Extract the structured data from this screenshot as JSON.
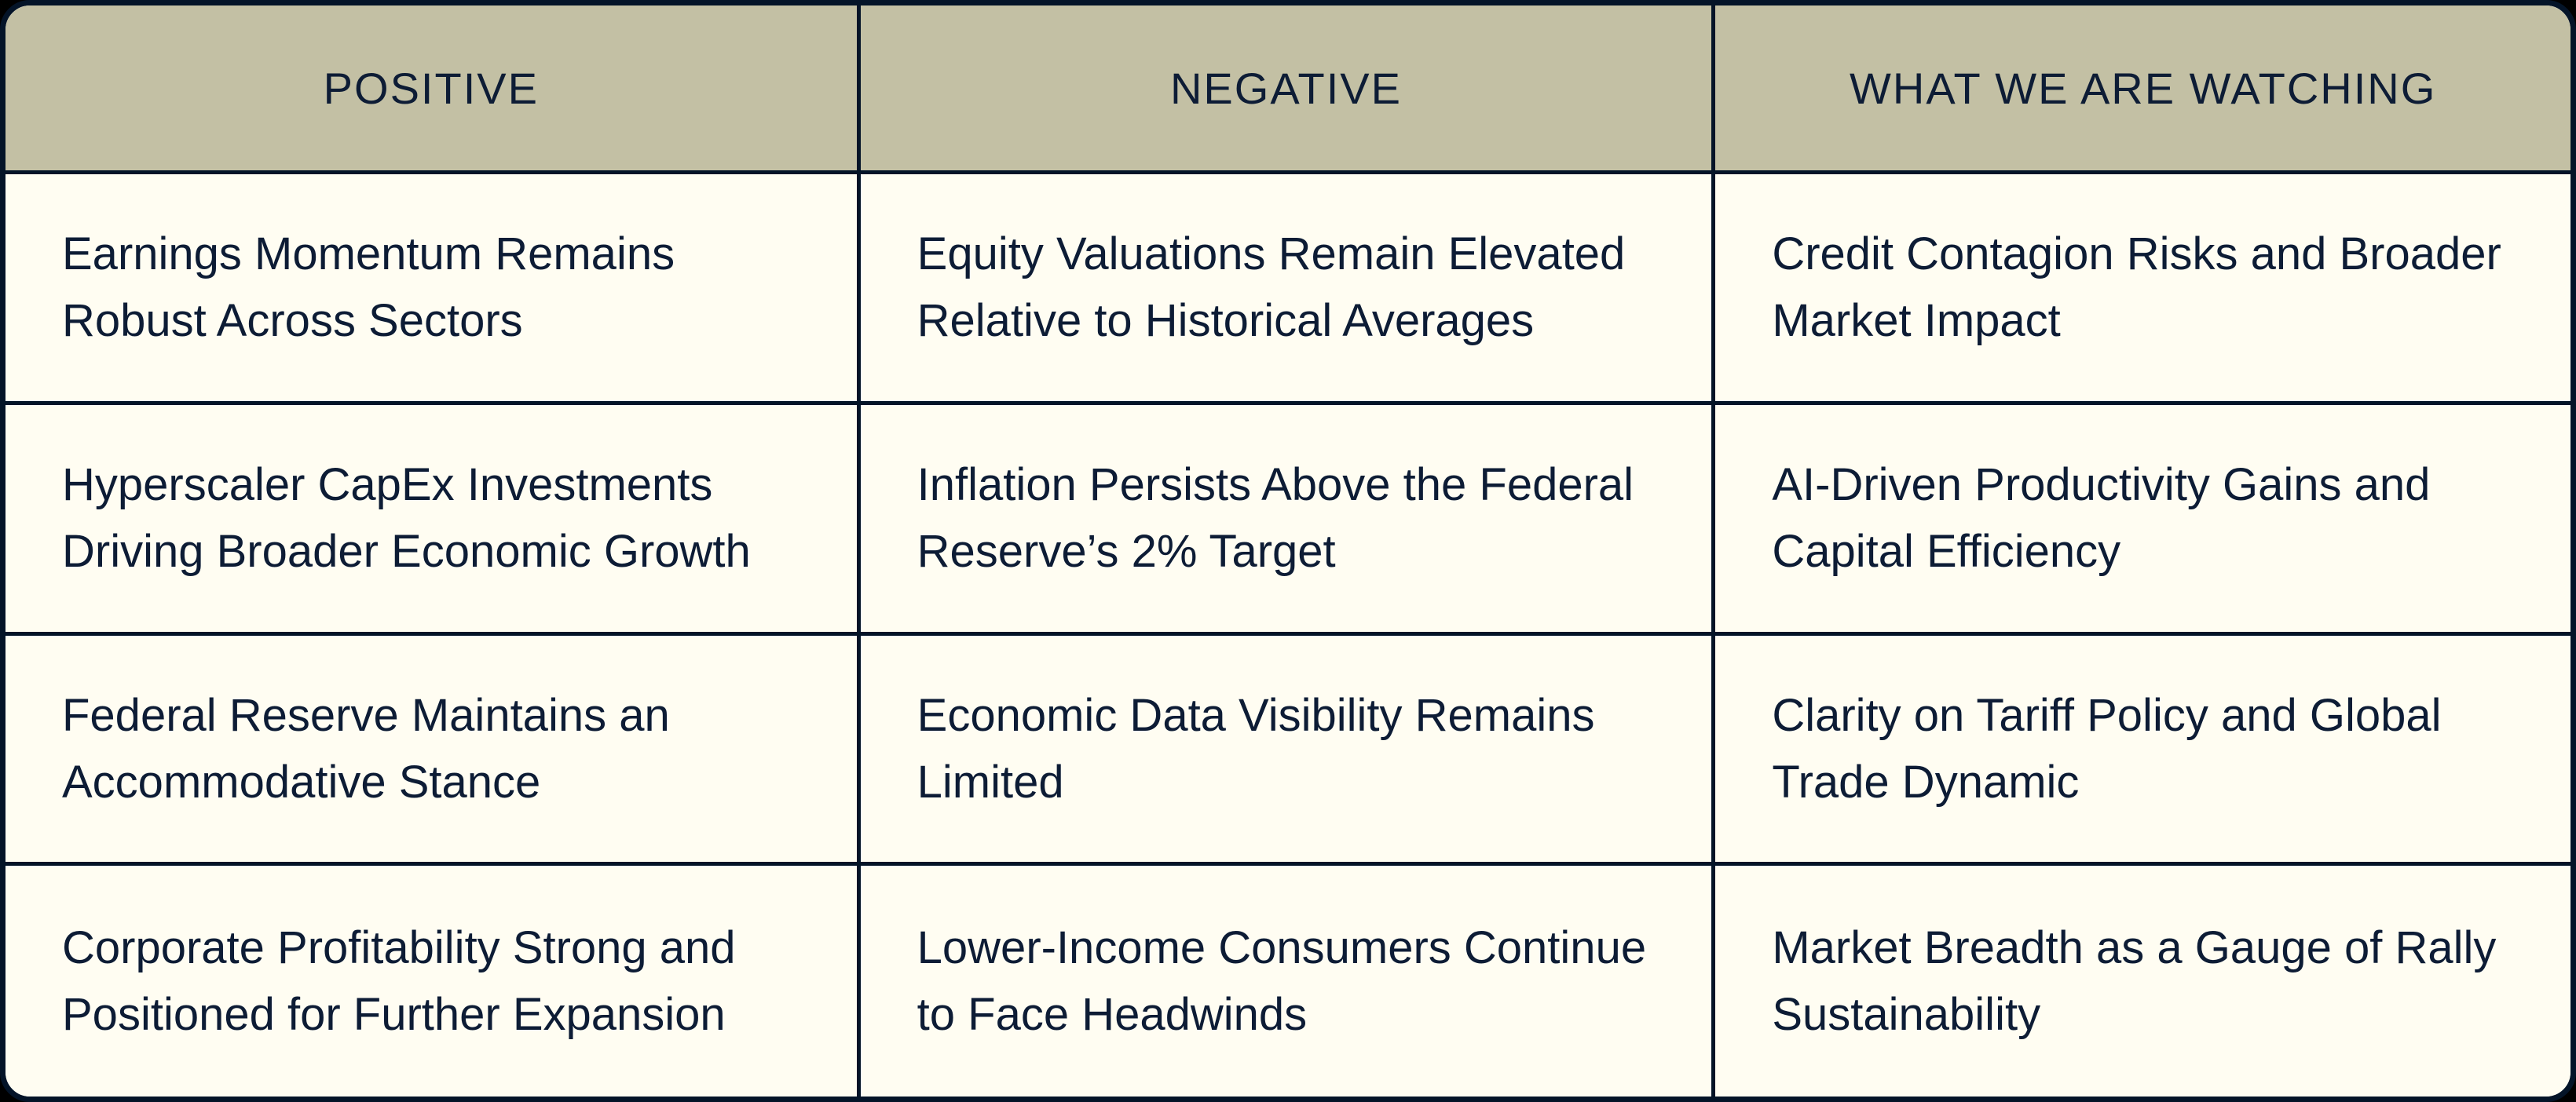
{
  "colors": {
    "header_background": "#c3c0a4",
    "body_background": "#fffdf2",
    "grid_border": "#041428",
    "text": "#0d1c35",
    "outer_background": "#000000"
  },
  "table": {
    "columns": [
      {
        "label": "POSITIVE"
      },
      {
        "label": "NEGATIVE"
      },
      {
        "label": "WHAT WE ARE WATCHING"
      }
    ],
    "rows": [
      {
        "positive": "Earnings Momentum Remains Robust Across Sectors",
        "negative": "Equity Valuations Remain Elevated Relative to Historical Averages",
        "watching": "Credit Contagion Risks and Broader Market Impact"
      },
      {
        "positive": "Hyperscaler CapEx Investments Driving Broader Economic Growth",
        "negative": "Inflation Persists Above the Federal Reserve’s 2% Target",
        "watching": "AI-Driven Productivity Gains and Capital Efficiency"
      },
      {
        "positive": "Federal Reserve Maintains an Accommodative Stance",
        "negative": "Economic Data Visibility Remains Limited",
        "watching": "Clarity on Tariff Policy and Global Trade Dynamic"
      },
      {
        "positive": "Corporate Profitability Strong and Positioned for Further Expansion",
        "negative": "Lower-Income Consumers Continue to Face Headwinds",
        "watching": "Market Breadth as a Gauge of Rally Sustainability"
      }
    ]
  }
}
